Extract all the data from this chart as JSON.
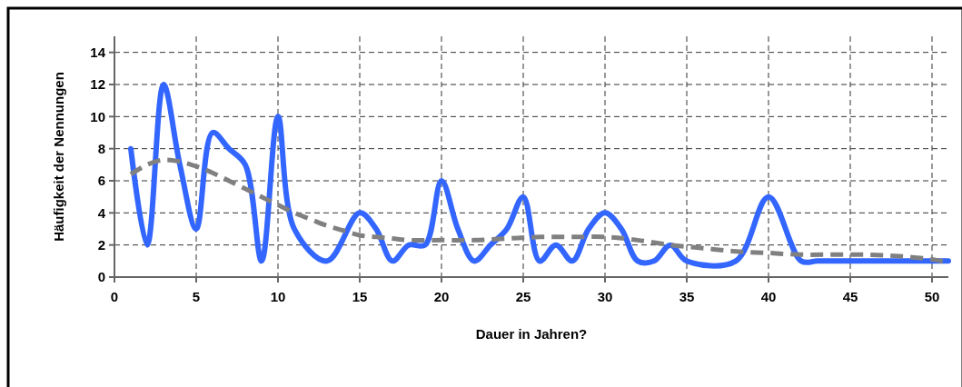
{
  "chart_data": {
    "type": "line",
    "xlabel": "Dauer in Jahren?",
    "ylabel": "Häufigkeit der Nennungen",
    "xlim": [
      0,
      51
    ],
    "ylim": [
      0,
      15
    ],
    "xticks": [
      0,
      5,
      10,
      15,
      20,
      25,
      30,
      35,
      40,
      45,
      50
    ],
    "yticks": [
      0,
      2,
      4,
      6,
      8,
      10,
      12,
      14
    ],
    "grid": true,
    "marker": "none",
    "series": [
      {
        "color": "#3366ff",
        "line_style": "solid",
        "x": [
          1,
          2,
          3,
          4,
          5,
          6,
          7,
          8,
          9,
          10,
          11,
          13,
          15,
          16,
          17,
          18,
          19,
          20,
          21,
          22,
          23,
          24,
          25,
          26,
          27,
          28,
          29,
          30,
          31,
          32,
          33,
          34,
          35,
          38,
          40,
          42,
          43,
          45,
          50,
          51
        ],
        "values": [
          8,
          2,
          12,
          7,
          3,
          9,
          8,
          7,
          1,
          10,
          3,
          1,
          4,
          3,
          1,
          2,
          2,
          6,
          3,
          1,
          2,
          3,
          5,
          1,
          2,
          1,
          3,
          4,
          3,
          1,
          1,
          2,
          1,
          1,
          5,
          1,
          1,
          1,
          1,
          1
        ]
      },
      {
        "color": "#808080",
        "line_style": "dashed",
        "x": [
          1,
          2,
          3,
          4,
          5,
          6,
          7,
          8,
          9,
          10,
          11,
          12,
          13,
          14,
          15,
          16,
          17,
          18,
          20,
          22,
          24,
          26,
          28,
          30,
          32,
          34,
          36,
          38,
          40,
          42,
          44,
          46,
          48,
          50,
          51
        ],
        "values": [
          6.4,
          7,
          7.3,
          7.2,
          6.9,
          6.5,
          6,
          5.5,
          5,
          4.5,
          4,
          3.6,
          3.2,
          2.9,
          2.6,
          2.5,
          2.4,
          2.3,
          2.3,
          2.3,
          2.4,
          2.5,
          2.5,
          2.5,
          2.3,
          2,
          1.8,
          1.6,
          1.5,
          1.4,
          1.4,
          1.4,
          1.3,
          1.1,
          0.9
        ]
      }
    ]
  }
}
